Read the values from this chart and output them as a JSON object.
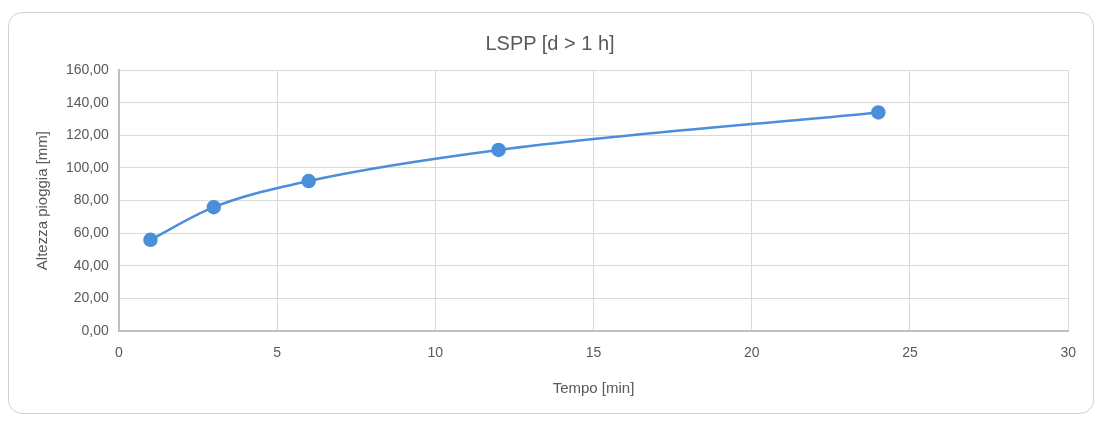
{
  "chart_data": {
    "type": "line",
    "title": "LSPP [d > 1 h]",
    "xlabel": "Tempo [min]",
    "ylabel": "Altezza pioggia [mm]",
    "x": [
      1,
      3,
      6,
      12,
      24
    ],
    "series": [
      {
        "color": "#4a8fd8",
        "values": [
          56,
          76,
          92,
          111,
          134
        ]
      }
    ],
    "xlim": [
      0,
      30
    ],
    "xticks": [
      0,
      5,
      10,
      15,
      20,
      25,
      30
    ],
    "ylim": [
      0,
      160
    ],
    "yticks": [
      {
        "value": 0,
        "label": "0,00"
      },
      {
        "value": 20,
        "label": "20,00"
      },
      {
        "value": 40,
        "label": "40,00"
      },
      {
        "value": 60,
        "label": "60,00"
      },
      {
        "value": 80,
        "label": "80,00"
      },
      {
        "value": 100,
        "label": "100,00"
      },
      {
        "value": 120,
        "label": "120,00"
      },
      {
        "value": 140,
        "label": "140,00"
      },
      {
        "value": 160,
        "label": "160,00"
      }
    ],
    "grid": true,
    "legend": false,
    "marker": "circle",
    "line_style": "solid"
  }
}
